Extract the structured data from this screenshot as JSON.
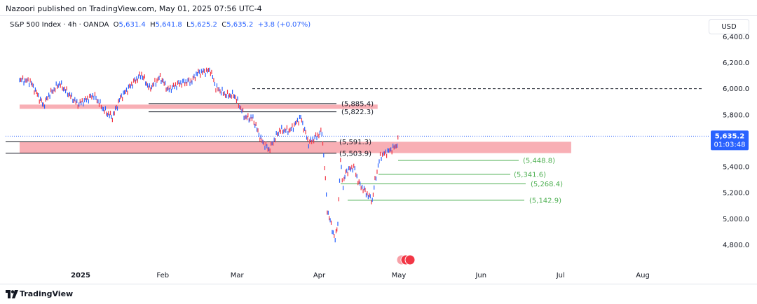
{
  "publisher": "Nazoori published on TradingView.com, May 01, 2025 07:56 UTC-4",
  "legend": {
    "symbol": "S&P 500 Index · 4h · OANDA",
    "open_label": "O",
    "open": "5,631.4",
    "high_label": "H",
    "high": "5,641.8",
    "low_label": "L",
    "low": "5,625.2",
    "close_label": "C",
    "close": "5,635.2",
    "change": "+3.8 (+0.07%)"
  },
  "currency": "USD",
  "footer_brand": "TradingView",
  "colors": {
    "up": "#2962ff",
    "down": "#f23645",
    "zone": "#f7a1a8",
    "label_bg": "#2962ff",
    "green": "#4caf50"
  },
  "chart_data": {
    "type": "line",
    "x_ticks": [
      "2025",
      "Feb",
      "Mar",
      "Apr",
      "May",
      "Jun",
      "Jul",
      "Aug"
    ],
    "y_ticks": [
      "6,400.0",
      "6,200.0",
      "6,000.0",
      "5,800.0",
      "5,400.0",
      "5,200.0",
      "5,000.0",
      "4,800.0"
    ],
    "y_tick_values": [
      6400,
      6200,
      6000,
      5800,
      5400,
      5200,
      5000,
      4800
    ],
    "ylim": [
      4700,
      6450
    ],
    "last_price": {
      "value": 5635.2,
      "label": "5,635.2",
      "countdown": "01:03:48"
    },
    "series": [
      {
        "points": [
          [
            "2024-12-09",
            6070
          ],
          [
            "2024-12-13",
            6055
          ],
          [
            "2024-12-18",
            5870
          ],
          [
            "2024-12-20",
            5950
          ],
          [
            "2024-12-24",
            6040
          ],
          [
            "2024-12-31",
            5880
          ],
          [
            "2025-01-06",
            5950
          ],
          [
            "2025-01-10",
            5830
          ],
          [
            "2025-01-13",
            5780
          ],
          [
            "2025-01-16",
            5930
          ],
          [
            "2025-01-21",
            6050
          ],
          [
            "2025-01-24",
            6110
          ],
          [
            "2025-01-27",
            6000
          ],
          [
            "2025-01-31",
            6090
          ],
          [
            "2025-02-03",
            5990
          ],
          [
            "2025-02-07",
            6040
          ],
          [
            "2025-02-12",
            6060
          ],
          [
            "2025-02-14",
            6120
          ],
          [
            "2025-02-19",
            6140
          ],
          [
            "2025-02-21",
            6010
          ],
          [
            "2025-02-25",
            5950
          ],
          [
            "2025-02-28",
            5950
          ],
          [
            "2025-03-04",
            5780
          ],
          [
            "2025-03-07",
            5770
          ],
          [
            "2025-03-10",
            5610
          ],
          [
            "2025-03-13",
            5530
          ],
          [
            "2025-03-17",
            5680
          ],
          [
            "2025-03-21",
            5680
          ],
          [
            "2025-03-25",
            5780
          ],
          [
            "2025-03-28",
            5580
          ],
          [
            "2025-04-02",
            5670
          ],
          [
            "2025-04-03",
            5400
          ],
          [
            "2025-04-04",
            5070
          ],
          [
            "2025-04-07",
            4835
          ],
          [
            "2025-04-08",
            4980
          ],
          [
            "2025-04-09",
            5450
          ],
          [
            "2025-04-10",
            5250
          ],
          [
            "2025-04-11",
            5360
          ],
          [
            "2025-04-14",
            5400
          ],
          [
            "2025-04-16",
            5270
          ],
          [
            "2025-04-21",
            5140
          ],
          [
            "2025-04-22",
            5290
          ],
          [
            "2025-04-24",
            5480
          ],
          [
            "2025-04-28",
            5530
          ],
          [
            "2025-04-30",
            5560
          ],
          [
            "2025-05-01",
            5635
          ]
        ]
      }
    ],
    "levels": [
      {
        "value": 6000,
        "style": "dashed"
      },
      {
        "value": 5885.4,
        "label": "(5,885.4)"
      },
      {
        "value": 5822.3,
        "label": "(5,822.3)"
      },
      {
        "value": 5591.3,
        "label": "(5,591.3)"
      },
      {
        "value": 5503.9,
        "label": "(5,503.9)"
      },
      {
        "value": 5448.8,
        "label": "(5,448.8)"
      },
      {
        "value": 5341.6,
        "label": "(5,341.6)"
      },
      {
        "value": 5268.4,
        "label": "(5,268.4)"
      },
      {
        "value": 5142.9,
        "label": "(5,142.9)"
      }
    ],
    "zones": [
      {
        "from": "2024-12-09",
        "to": "2025-04-23",
        "low": 5845,
        "high": 5878
      },
      {
        "from": "2024-12-09",
        "to": "2025-07-05",
        "low": 5505,
        "high": 5592
      }
    ],
    "grid": true
  }
}
